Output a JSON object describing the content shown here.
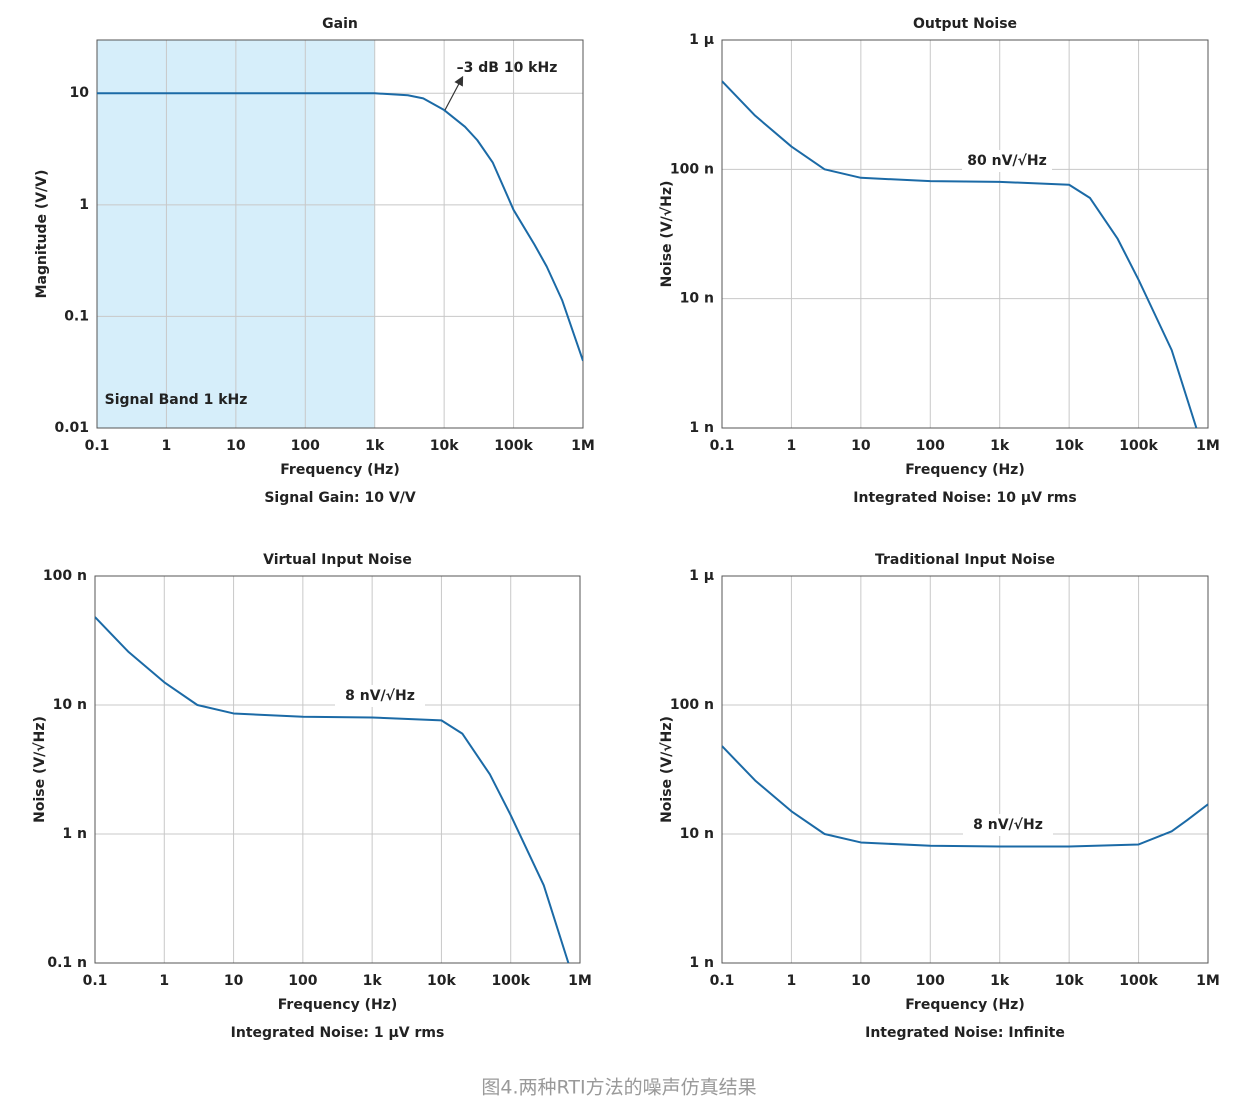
{
  "chart_data": [
    {
      "type": "line",
      "title": "Gain",
      "subtitle": "Signal Gain: 10 V/V",
      "xlabel": "Frequency (Hz)",
      "ylabel": "Magnitude (V/V)",
      "log_x": true,
      "log_y": true,
      "grid": true,
      "color": "#1b6aa6",
      "xlim": [
        0.1,
        1000000
      ],
      "ylim": [
        0.01,
        30
      ],
      "xticks": [
        0.1,
        1,
        10,
        100,
        {
          "value": 1000,
          "label": "1k"
        },
        {
          "value": 10000,
          "label": "10k"
        },
        {
          "value": 100000,
          "label": "100k"
        },
        {
          "value": 1000000,
          "label": "1M"
        }
      ],
      "yticks": [
        0.01,
        0.1,
        1,
        10
      ],
      "shaded_band": {
        "xlim": [
          0.1,
          1000
        ],
        "color": "#d6eefa"
      },
      "x": [
        0.1,
        1,
        10,
        100,
        1000,
        3000,
        5000,
        10000,
        20000,
        30000,
        50000,
        100000,
        200000,
        300000,
        500000,
        1000000
      ],
      "values": [
        10,
        10,
        10,
        10,
        9.99,
        9.6,
        9.0,
        7.07,
        5.0,
        3.8,
        2.4,
        0.9,
        0.44,
        0.28,
        0.14,
        0.04
      ],
      "annotations": [
        "–3 dB 10 kHz",
        "Signal Band 1 kHz"
      ]
    },
    {
      "type": "line",
      "title": "Output Noise",
      "subtitle": "Integrated Noise: 10 µV rms",
      "xlabel": "Frequency (Hz)",
      "ylabel": "Noise (V/√Hz)",
      "log_x": true,
      "log_y": true,
      "grid": true,
      "color": "#1b6aa6",
      "xlim": [
        0.1,
        1000000
      ],
      "ylim": [
        1e-09,
        1e-06
      ],
      "xticks": [
        0.1,
        1,
        10,
        100,
        {
          "value": 1000,
          "label": "1k"
        },
        {
          "value": 10000,
          "label": "10k"
        },
        {
          "value": 100000,
          "label": "100k"
        },
        {
          "value": 1000000,
          "label": "1M"
        }
      ],
      "yticks": [
        {
          "value": 1e-09,
          "label": "1 n"
        },
        {
          "value": 1e-08,
          "label": "10 n"
        },
        {
          "value": 1e-07,
          "label": "100 n"
        },
        {
          "value": 1e-06,
          "label": "1 µ"
        }
      ],
      "x": [
        0.1,
        0.3,
        1,
        3,
        10,
        100,
        1000,
        10000,
        20000,
        50000,
        100000,
        300000,
        680000
      ],
      "values": [
        4.8e-07,
        2.6e-07,
        1.5e-07,
        1e-07,
        8.6e-08,
        8.1e-08,
        8e-08,
        7.6e-08,
        6e-08,
        2.9e-08,
        1.4e-08,
        4e-09,
        1e-09
      ],
      "annotations": [
        "80 nV/√Hz"
      ]
    },
    {
      "type": "line",
      "title": "Virtual Input Noise",
      "subtitle": "Integrated Noise: 1 µV rms",
      "xlabel": "Frequency (Hz)",
      "ylabel": "Noise (V/√Hz)",
      "log_x": true,
      "log_y": true,
      "grid": true,
      "color": "#1b6aa6",
      "xlim": [
        0.1,
        1000000
      ],
      "ylim": [
        1e-10,
        1e-07
      ],
      "xticks": [
        0.1,
        1,
        10,
        100,
        {
          "value": 1000,
          "label": "1k"
        },
        {
          "value": 10000,
          "label": "10k"
        },
        {
          "value": 100000,
          "label": "100k"
        },
        {
          "value": 1000000,
          "label": "1M"
        }
      ],
      "yticks": [
        {
          "value": 1e-10,
          "label": "0.1 n"
        },
        {
          "value": 1e-09,
          "label": "1 n"
        },
        {
          "value": 1e-08,
          "label": "10 n"
        },
        {
          "value": 1e-07,
          "label": "100 n"
        }
      ],
      "x": [
        0.1,
        0.3,
        1,
        3,
        10,
        100,
        1000,
        10000,
        20000,
        50000,
        100000,
        300000,
        680000
      ],
      "values": [
        4.8e-08,
        2.6e-08,
        1.5e-08,
        1e-08,
        8.6e-09,
        8.1e-09,
        8e-09,
        7.6e-09,
        6e-09,
        2.9e-09,
        1.4e-09,
        4e-10,
        1e-10
      ],
      "annotations": [
        "8 nV/√Hz"
      ]
    },
    {
      "type": "line",
      "title": "Traditional Input Noise",
      "subtitle": "Integrated Noise: Infinite",
      "xlabel": "Frequency (Hz)",
      "ylabel": "Noise (V/√Hz)",
      "log_x": true,
      "log_y": true,
      "grid": true,
      "color": "#1b6aa6",
      "xlim": [
        0.1,
        1000000
      ],
      "ylim": [
        1e-09,
        1e-06
      ],
      "xticks": [
        0.1,
        1,
        10,
        100,
        {
          "value": 1000,
          "label": "1k"
        },
        {
          "value": 10000,
          "label": "10k"
        },
        {
          "value": 100000,
          "label": "100k"
        },
        {
          "value": 1000000,
          "label": "1M"
        }
      ],
      "yticks": [
        {
          "value": 1e-09,
          "label": "1 n"
        },
        {
          "value": 1e-08,
          "label": "10 n"
        },
        {
          "value": 1e-07,
          "label": "100 n"
        },
        {
          "value": 1e-06,
          "label": "1 µ"
        }
      ],
      "x": [
        0.1,
        0.3,
        1,
        3,
        10,
        100,
        1000,
        10000,
        100000,
        300000,
        500000,
        1000000
      ],
      "values": [
        4.8e-08,
        2.6e-08,
        1.5e-08,
        1e-08,
        8.6e-09,
        8.1e-09,
        8e-09,
        8e-09,
        8.3e-09,
        1.05e-08,
        1.28e-08,
        1.7e-08
      ],
      "annotations": [
        "8 nV/√Hz"
      ]
    }
  ],
  "caption": "图4.两种RTI方法的噪声仿真结果"
}
